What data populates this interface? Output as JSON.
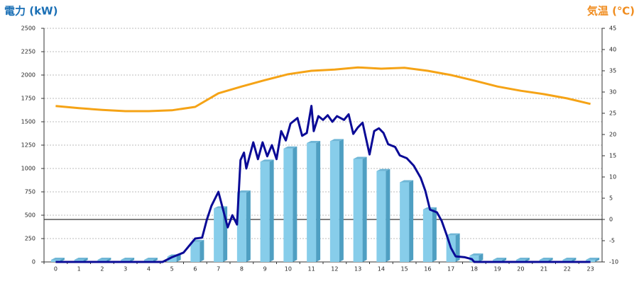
{
  "chart_data": {
    "type": "bar",
    "ylabel": "電力 (kW)",
    "y2label": "気温 (℃)",
    "categories": [
      "0",
      "1",
      "2",
      "3",
      "4",
      "5",
      "6",
      "7",
      "8",
      "9",
      "10",
      "11",
      "12",
      "13",
      "14",
      "15",
      "16",
      "17",
      "18",
      "19",
      "20",
      "21",
      "22",
      "23"
    ],
    "ylim": [
      0,
      2500
    ],
    "yticks": [
      0,
      250,
      500,
      750,
      1000,
      1250,
      1500,
      1750,
      2000,
      2250,
      2500
    ],
    "y2lim": [
      -10,
      45
    ],
    "y2ticks": [
      -10,
      -5,
      0,
      5,
      10,
      15,
      20,
      25,
      30,
      35,
      40,
      45
    ],
    "grid": true,
    "zero_line": "y2",
    "series": [
      {
        "type": "bar",
        "color": "#87cdea",
        "values": [
          0,
          0,
          0,
          0,
          0,
          35,
          190,
          550,
          720,
          1050,
          1190,
          1250,
          1270,
          1080,
          950,
          830,
          540,
          260,
          45,
          0,
          0,
          0,
          0,
          0
        ]
      },
      {
        "type": "line",
        "color": "#0a0a96",
        "x": [
          0,
          4.6,
          5,
          5.5,
          6,
          6.3,
          6.5,
          6.7,
          7,
          7.4,
          7.6,
          7.8,
          7.95,
          8.1,
          8.2,
          8.5,
          8.7,
          8.9,
          9.1,
          9.3,
          9.5,
          9.7,
          9.9,
          10.1,
          10.4,
          10.6,
          10.8,
          11,
          11.1,
          11.3,
          11.5,
          11.7,
          11.9,
          12.1,
          12.4,
          12.6,
          12.8,
          13,
          13.2,
          13.5,
          13.7,
          13.9,
          14.1,
          14.3,
          14.6,
          14.8,
          15.1,
          15.4,
          15.7,
          15.9,
          16.1,
          16.4,
          16.6,
          16.8,
          17,
          17.2,
          17.4,
          17.6,
          17.9,
          18,
          23
        ],
        "values": [
          0,
          0,
          50,
          100,
          250,
          260,
          450,
          600,
          750,
          370,
          500,
          400,
          1090,
          1170,
          1000,
          1280,
          1100,
          1280,
          1130,
          1250,
          1100,
          1400,
          1300,
          1480,
          1540,
          1350,
          1380,
          1670,
          1400,
          1560,
          1520,
          1570,
          1500,
          1560,
          1520,
          1580,
          1370,
          1440,
          1490,
          1150,
          1400,
          1430,
          1380,
          1260,
          1230,
          1140,
          1110,
          1030,
          900,
          760,
          560,
          530,
          440,
          300,
          150,
          60,
          55,
          50,
          30,
          0,
          0
        ]
      },
      {
        "type": "line",
        "axis": "y2",
        "color": "#f5a316",
        "values": [
          26.7,
          26.2,
          25.8,
          25.5,
          25.5,
          25.7,
          26.5,
          29.7,
          31.3,
          32.8,
          34.2,
          35,
          35.3,
          35.8,
          35.5,
          35.7,
          35,
          34,
          32.7,
          31.3,
          30.3,
          29.5,
          28.5,
          27.2
        ]
      }
    ]
  }
}
